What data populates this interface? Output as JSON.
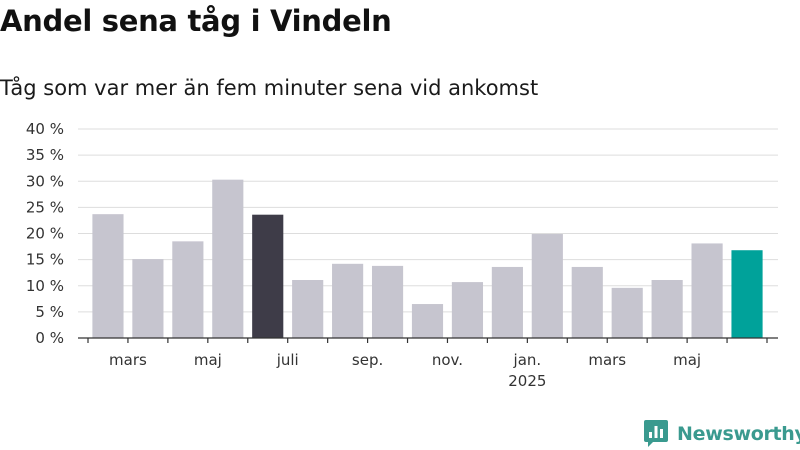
{
  "title": "Andel sena tåg i Vindeln",
  "subtitle": "Tåg som var mer än fem minuter sena vid ankomst",
  "brand": {
    "name": "Newsworthy"
  },
  "colors": {
    "bar_default": "#c6c5cf",
    "bar_highlight_dark": "#3e3c48",
    "bar_highlight_accent": "#00a29a",
    "grid": "#dddddd",
    "axis": "#333333",
    "brand": "#3a9a8f"
  },
  "chart_data": {
    "type": "bar",
    "x": [
      "2024-02",
      "2024-03",
      "2024-04",
      "2024-05",
      "2024-06",
      "2024-07",
      "2024-08",
      "2024-09",
      "2024-10",
      "2024-11",
      "2024-12",
      "2025-01",
      "2025-02",
      "2025-03",
      "2025-04",
      "2025-05",
      "2025-06"
    ],
    "values": [
      23.7,
      15.1,
      18.5,
      30.3,
      23.6,
      11.1,
      14.2,
      13.8,
      6.5,
      10.7,
      13.6,
      19.9,
      13.6,
      9.6,
      11.1,
      18.1,
      16.8
    ],
    "highlight": {
      "2024-06": "bar_highlight_dark",
      "2025-06": "bar_highlight_accent"
    },
    "ylim": [
      0,
      40
    ],
    "yticks": [
      0,
      5,
      10,
      15,
      20,
      25,
      30,
      35,
      40
    ],
    "ytick_labels": [
      "0 %",
      "5 %",
      "10 %",
      "15 %",
      "20 %",
      "25 %",
      "30 %",
      "35 %",
      "40 %"
    ],
    "xtick_labels": [
      {
        "index": 1,
        "label": "mars"
      },
      {
        "index": 3,
        "label": "maj"
      },
      {
        "index": 5,
        "label": "juli"
      },
      {
        "index": 7,
        "label": "sep."
      },
      {
        "index": 9,
        "label": "nov."
      },
      {
        "index": 11,
        "label": "jan.",
        "sublabel": "2025"
      },
      {
        "index": 13,
        "label": "mars"
      },
      {
        "index": 15,
        "label": "maj"
      }
    ],
    "grid": true,
    "xlabel": "",
    "ylabel": ""
  }
}
